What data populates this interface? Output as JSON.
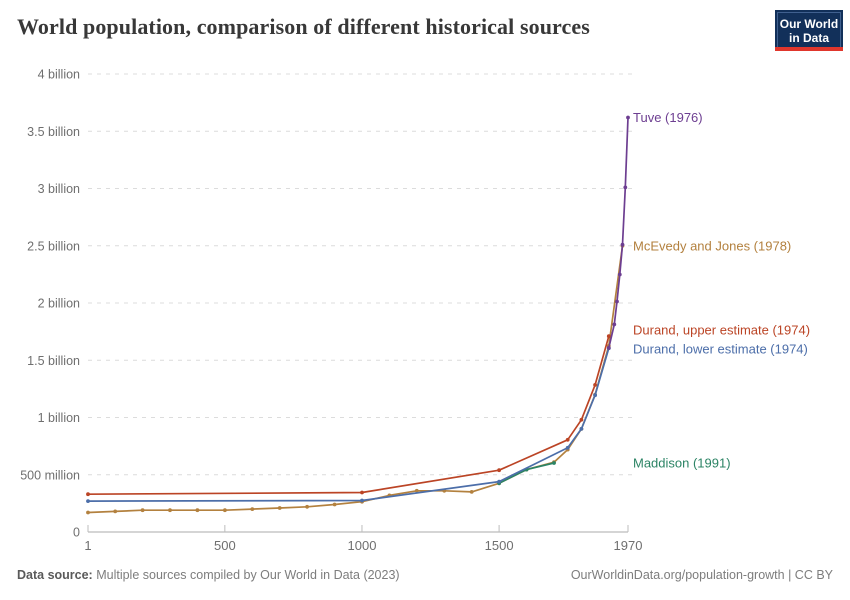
{
  "header": {
    "title": "World population, comparison of different historical sources"
  },
  "logo": {
    "line1": "Our World",
    "line2": "in Data"
  },
  "footer": {
    "source_label": "Data source:",
    "source_text": " Multiple sources compiled by Our World in Data (2023)",
    "credit": "OurWorldinData.org/population-growth | CC BY"
  },
  "chart_data": {
    "type": "line",
    "title": "World population, comparison of different historical sources",
    "unit": "people (millions)",
    "grid": "dashed-horizontal",
    "legend_position": "right-end-labels",
    "x_axis": {
      "min": 1,
      "max": 1970,
      "ticks": [
        1,
        500,
        1000,
        1500,
        1970
      ]
    },
    "y_axis": {
      "min": 0,
      "max": 4000,
      "ticks": [
        {
          "value": 0,
          "label": "0"
        },
        {
          "value": 500,
          "label": "500 million"
        },
        {
          "value": 1000,
          "label": "1 billion"
        },
        {
          "value": 1500,
          "label": "1.5 billion"
        },
        {
          "value": 2000,
          "label": "2 billion"
        },
        {
          "value": 2500,
          "label": "2.5 billion"
        },
        {
          "value": 3000,
          "label": "3 billion"
        },
        {
          "value": 3500,
          "label": "3.5 billion"
        },
        {
          "value": 4000,
          "label": "4 billion"
        }
      ]
    },
    "series": [
      {
        "id": "mcevedy-jones-1978",
        "label": "McEvedy and Jones (1978)",
        "color": "#b3813f",
        "label_dy": 0,
        "points": [
          [
            1,
            170
          ],
          [
            100,
            180
          ],
          [
            200,
            190
          ],
          [
            300,
            190
          ],
          [
            400,
            190
          ],
          [
            500,
            190
          ],
          [
            600,
            200
          ],
          [
            700,
            210
          ],
          [
            800,
            220
          ],
          [
            900,
            240
          ],
          [
            1000,
            265
          ],
          [
            1100,
            320
          ],
          [
            1200,
            360
          ],
          [
            1300,
            360
          ],
          [
            1400,
            350
          ],
          [
            1500,
            425
          ],
          [
            1600,
            545
          ],
          [
            1700,
            610
          ],
          [
            1750,
            720
          ],
          [
            1800,
            900
          ],
          [
            1850,
            1200
          ],
          [
            1900,
            1625
          ],
          [
            1950,
            2500
          ]
        ]
      },
      {
        "id": "maddison-1991",
        "label": "Maddison (1991)",
        "color": "#2c8465",
        "label_dy": 0,
        "points": [
          [
            1500,
            425
          ],
          [
            1600,
            545
          ],
          [
            1700,
            603
          ]
        ]
      },
      {
        "id": "durand-lower-1974",
        "label": "Durand, lower estimate (1974)",
        "color": "#4c6ea9",
        "label_dy": 1,
        "points": [
          [
            1,
            270
          ],
          [
            1000,
            275
          ],
          [
            1500,
            440
          ],
          [
            1750,
            735
          ],
          [
            1800,
            900
          ],
          [
            1850,
            1195
          ],
          [
            1900,
            1605
          ]
        ]
      },
      {
        "id": "durand-upper-1974",
        "label": "Durand, upper estimate (1974)",
        "color": "#bb4425",
        "label_dy": -6,
        "points": [
          [
            1,
            330
          ],
          [
            1000,
            345
          ],
          [
            1500,
            540
          ],
          [
            1750,
            805
          ],
          [
            1800,
            980
          ],
          [
            1850,
            1285
          ],
          [
            1900,
            1710
          ]
        ]
      },
      {
        "id": "tuve-1976",
        "label": "Tuve (1976)",
        "color": "#6d3e91",
        "label_dy": 0,
        "points": [
          [
            1900,
            1608
          ],
          [
            1920,
            1813
          ],
          [
            1930,
            2013
          ],
          [
            1940,
            2249
          ],
          [
            1950,
            2510
          ],
          [
            1960,
            3010
          ],
          [
            1970,
            3620
          ]
        ]
      }
    ]
  }
}
